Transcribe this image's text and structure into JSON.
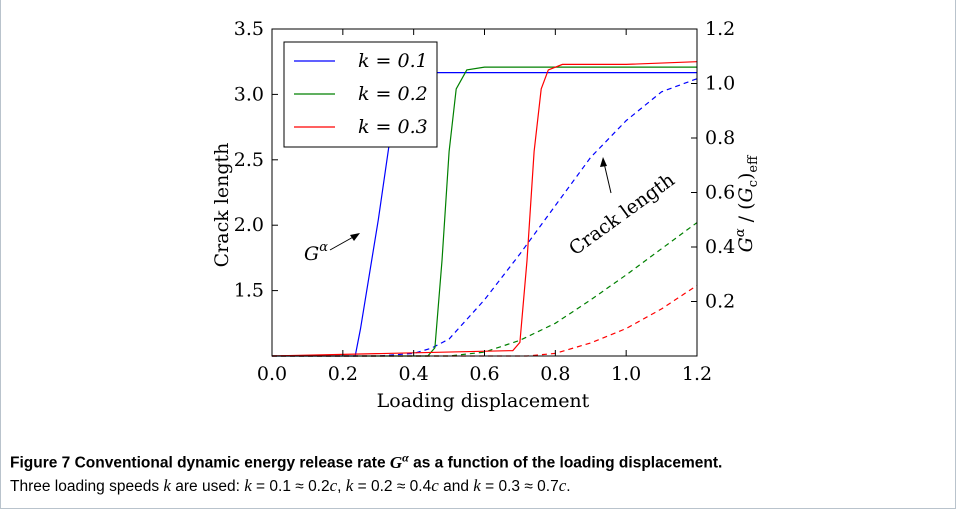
{
  "caption": {
    "title": "Figure 7  Conventional dynamic energy release rate Gα as a function of the loading displacement.",
    "body": "Three loading speeds k are used: k = 0.1 ≈ 0.2c, k = 0.2 ≈ 0.4c and k = 0.3 ≈ 0.7c."
  },
  "chart_data": {
    "type": "line",
    "xlabel": "Loading displacement",
    "ylabel_left": "Crack length",
    "ylabel_right": "Gα/(Gc)eff",
    "xlim": [
      0.0,
      1.2
    ],
    "ylim_left": [
      1.0,
      3.5
    ],
    "ylim_right": [
      0.0,
      1.2
    ],
    "xticks": [
      "0.0",
      "0.2",
      "0.4",
      "0.6",
      "0.8",
      "1.0",
      "1.2"
    ],
    "yticks_left": [
      "1.5",
      "2.0",
      "2.5",
      "3.0",
      "3.5"
    ],
    "yticks_right": [
      "0.2",
      "0.4",
      "0.6",
      "0.8",
      "1.0",
      "1.2"
    ],
    "grid": false,
    "legend_position": "top-left",
    "annotations": [
      {
        "text": "Gα",
        "points_to": "Gα curves"
      },
      {
        "text": "Crack length",
        "points_to": "dashed crack length curves"
      }
    ],
    "series": [
      {
        "name": "k = 0.1",
        "color": "#0000ff",
        "g_alpha": {
          "x": [
            0.0,
            0.22,
            0.235,
            0.25,
            0.3,
            0.35,
            0.38,
            0.42,
            0.5,
            0.6,
            0.8,
            1.0,
            1.2
          ],
          "y": [
            0.0,
            0.0,
            0.0,
            0.1,
            0.5,
            0.95,
            1.03,
            1.04,
            1.04,
            1.04,
            1.04,
            1.04,
            1.04
          ]
        },
        "crack_length": {
          "x": [
            0.0,
            0.3,
            0.4,
            0.45,
            0.5,
            0.6,
            0.7,
            0.8,
            0.9,
            1.0,
            1.1,
            1.2
          ],
          "y": [
            1.0,
            1.0,
            1.02,
            1.06,
            1.13,
            1.43,
            1.78,
            2.15,
            2.52,
            2.8,
            3.02,
            3.12
          ]
        }
      },
      {
        "name": "k = 0.2",
        "color": "#008000",
        "g_alpha": {
          "x": [
            0.0,
            0.44,
            0.46,
            0.48,
            0.5,
            0.52,
            0.55,
            0.6,
            0.8,
            1.0,
            1.2
          ],
          "y": [
            0.0,
            0.0,
            0.03,
            0.35,
            0.75,
            0.98,
            1.05,
            1.06,
            1.06,
            1.06,
            1.06
          ]
        },
        "crack_length": {
          "x": [
            0.0,
            0.5,
            0.6,
            0.7,
            0.8,
            0.9,
            1.0,
            1.1,
            1.2
          ],
          "y": [
            1.0,
            1.0,
            1.03,
            1.12,
            1.25,
            1.43,
            1.62,
            1.82,
            2.02
          ]
        }
      },
      {
        "name": "k = 0.3",
        "color": "#ff0000",
        "g_alpha": {
          "x": [
            0.0,
            0.68,
            0.7,
            0.72,
            0.74,
            0.76,
            0.78,
            0.82,
            1.0,
            1.2
          ],
          "y": [
            0.0,
            0.02,
            0.05,
            0.35,
            0.75,
            0.98,
            1.05,
            1.07,
            1.07,
            1.08
          ]
        },
        "crack_length": {
          "x": [
            0.0,
            0.72,
            0.8,
            0.9,
            1.0,
            1.1,
            1.2
          ],
          "y": [
            1.0,
            1.0,
            1.02,
            1.1,
            1.21,
            1.36,
            1.54
          ]
        }
      }
    ]
  }
}
